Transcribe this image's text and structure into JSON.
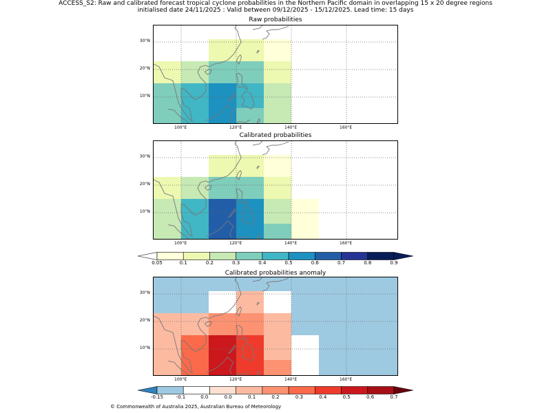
{
  "header": {
    "line1": "ACCESS_S2: Raw and calibrated forecast tropical cyclone probabilities in the Northern Pacific domain in overlapping 15 x 20 degree regions",
    "line2": "initialised date 24/11/2025 :  Valid between 09/12/2025 - 15/12/2025. Lead time: 15 days"
  },
  "axes": {
    "lon_labels": [
      "100°E",
      "120°E",
      "140°E",
      "160°E"
    ],
    "lat_labels": [
      "30°N",
      "20°N",
      "10°N"
    ]
  },
  "panels": [
    {
      "title": "Raw probabilities",
      "scale": "prob",
      "cells": [
        {
          "lon0": 110,
          "lon1": 120,
          "lat0": 23,
          "lat1": 31,
          "value": 0.1
        },
        {
          "lon0": 120,
          "lon1": 130,
          "lat0": 23,
          "lat1": 31,
          "value": 0.15
        },
        {
          "lon0": 130,
          "lon1": 140,
          "lat0": 23,
          "lat1": 31,
          "value": 0.05
        },
        {
          "lon0": 90,
          "lon1": 100,
          "lat0": 15,
          "lat1": 23,
          "value": 0.15
        },
        {
          "lon0": 100,
          "lon1": 110,
          "lat0": 15,
          "lat1": 23,
          "value": 0.25
        },
        {
          "lon0": 110,
          "lon1": 120,
          "lat0": 15,
          "lat1": 23,
          "value": 0.35
        },
        {
          "lon0": 120,
          "lon1": 130,
          "lat0": 15,
          "lat1": 23,
          "value": 0.35
        },
        {
          "lon0": 130,
          "lon1": 140,
          "lat0": 15,
          "lat1": 23,
          "value": 0.15
        },
        {
          "lon0": 90,
          "lon1": 100,
          "lat0": 0,
          "lat1": 15,
          "value": 0.35
        },
        {
          "lon0": 100,
          "lon1": 110,
          "lat0": 0,
          "lat1": 15,
          "value": 0.45
        },
        {
          "lon0": 110,
          "lon1": 120,
          "lat0": 0,
          "lat1": 15,
          "value": 0.55
        },
        {
          "lon0": 120,
          "lon1": 130,
          "lat0": 6,
          "lat1": 15,
          "value": 0.45
        },
        {
          "lon0": 120,
          "lon1": 130,
          "lat0": 0,
          "lat1": 6,
          "value": 0.35
        },
        {
          "lon0": 130,
          "lon1": 140,
          "lat0": 0,
          "lat1": 15,
          "value": 0.25
        }
      ]
    },
    {
      "title": "Calibrated probabilities",
      "scale": "prob",
      "cells": [
        {
          "lon0": 110,
          "lon1": 120,
          "lat0": 23,
          "lat1": 31,
          "value": 0.1
        },
        {
          "lon0": 120,
          "lon1": 130,
          "lat0": 23,
          "lat1": 31,
          "value": 0.15
        },
        {
          "lon0": 130,
          "lon1": 140,
          "lat0": 23,
          "lat1": 31,
          "value": 0.05
        },
        {
          "lon0": 90,
          "lon1": 100,
          "lat0": 15,
          "lat1": 23,
          "value": 0.15
        },
        {
          "lon0": 100,
          "lon1": 110,
          "lat0": 15,
          "lat1": 23,
          "value": 0.25
        },
        {
          "lon0": 110,
          "lon1": 120,
          "lat0": 15,
          "lat1": 23,
          "value": 0.35
        },
        {
          "lon0": 120,
          "lon1": 130,
          "lat0": 15,
          "lat1": 23,
          "value": 0.35
        },
        {
          "lon0": 130,
          "lon1": 140,
          "lat0": 15,
          "lat1": 23,
          "value": 0.15
        },
        {
          "lon0": 90,
          "lon1": 100,
          "lat0": 0,
          "lat1": 15,
          "value": 0.25
        },
        {
          "lon0": 100,
          "lon1": 110,
          "lat0": 0,
          "lat1": 15,
          "value": 0.45
        },
        {
          "lon0": 110,
          "lon1": 120,
          "lat0": 0,
          "lat1": 15,
          "value": 0.65
        },
        {
          "lon0": 120,
          "lon1": 130,
          "lat0": 0,
          "lat1": 15,
          "value": 0.55
        },
        {
          "lon0": 130,
          "lon1": 140,
          "lat0": 6,
          "lat1": 15,
          "value": 0.25
        },
        {
          "lon0": 130,
          "lon1": 140,
          "lat0": 0,
          "lat1": 6,
          "value": 0.35
        },
        {
          "lon0": 140,
          "lon1": 150,
          "lat0": 0,
          "lat1": 15,
          "value": 0.05
        }
      ]
    },
    {
      "title": "Calibrated probabilities anomaly",
      "scale": "anom",
      "cells": [
        {
          "lon0": 90,
          "lon1": 180,
          "lat0": 0,
          "lat1": 37,
          "value": -0.15
        },
        {
          "lon0": 110,
          "lon1": 120,
          "lat0": 23,
          "lat1": 31,
          "value": -0.1
        },
        {
          "lon0": 120,
          "lon1": 130,
          "lat0": 23,
          "lat1": 31,
          "value": 0.0
        },
        {
          "lon0": 130,
          "lon1": 140,
          "lat0": 23,
          "lat1": 31,
          "value": -0.1
        },
        {
          "lon0": 90,
          "lon1": 100,
          "lat0": 15,
          "lat1": 23,
          "value": 0.0
        },
        {
          "lon0": 100,
          "lon1": 110,
          "lat0": 15,
          "lat1": 23,
          "value": 0.05
        },
        {
          "lon0": 110,
          "lon1": 120,
          "lat0": 15,
          "lat1": 23,
          "value": 0.15
        },
        {
          "lon0": 120,
          "lon1": 130,
          "lat0": 15,
          "lat1": 23,
          "value": 0.15
        },
        {
          "lon0": 130,
          "lon1": 140,
          "lat0": 15,
          "lat1": 23,
          "value": 0.0
        },
        {
          "lon0": 90,
          "lon1": 100,
          "lat0": 0,
          "lat1": 15,
          "value": 0.05
        },
        {
          "lon0": 100,
          "lon1": 110,
          "lat0": 0,
          "lat1": 15,
          "value": 0.25
        },
        {
          "lon0": 110,
          "lon1": 120,
          "lat0": 0,
          "lat1": 15,
          "value": 0.45
        },
        {
          "lon0": 120,
          "lon1": 130,
          "lat0": 0,
          "lat1": 15,
          "value": 0.35
        },
        {
          "lon0": 130,
          "lon1": 140,
          "lat0": 6,
          "lat1": 15,
          "value": 0.05
        },
        {
          "lon0": 130,
          "lon1": 140,
          "lat0": 0,
          "lat1": 6,
          "value": 0.15
        },
        {
          "lon0": 140,
          "lon1": 150,
          "lat0": 0,
          "lat1": 15,
          "value": -0.1
        }
      ]
    }
  ],
  "colorbars": {
    "prob": {
      "labels": [
        "0.05",
        "0.1",
        "0.2",
        "0.3",
        "0.4",
        "0.5",
        "0.6",
        "0.7",
        "0.8",
        "0.9"
      ],
      "colors": [
        "#ffffd9",
        "#edf8b1",
        "#c7e9b4",
        "#7fcdbb",
        "#41b6c4",
        "#1d91c0",
        "#225ea8",
        "#253494",
        "#081d58"
      ],
      "under": "#ffffff",
      "over": "#081d58"
    },
    "anom": {
      "labels": [
        "-0.15",
        "-0.1",
        "0.0",
        "0.0",
        "0.1",
        "0.2",
        "0.3",
        "0.4",
        "0.5",
        "0.6",
        "0.7"
      ],
      "colors": [
        "#9ecae1",
        "#ffffff",
        "#fee0d2",
        "#fcbba1",
        "#fc9272",
        "#fb6a4a",
        "#ef3b2c",
        "#cb181d",
        "#a50f15"
      ],
      "under": "#3182bd",
      "over": "#67000d"
    }
  },
  "footer": "© Commonwealth of Australia 2025, Australian Bureau of Meteorology"
}
